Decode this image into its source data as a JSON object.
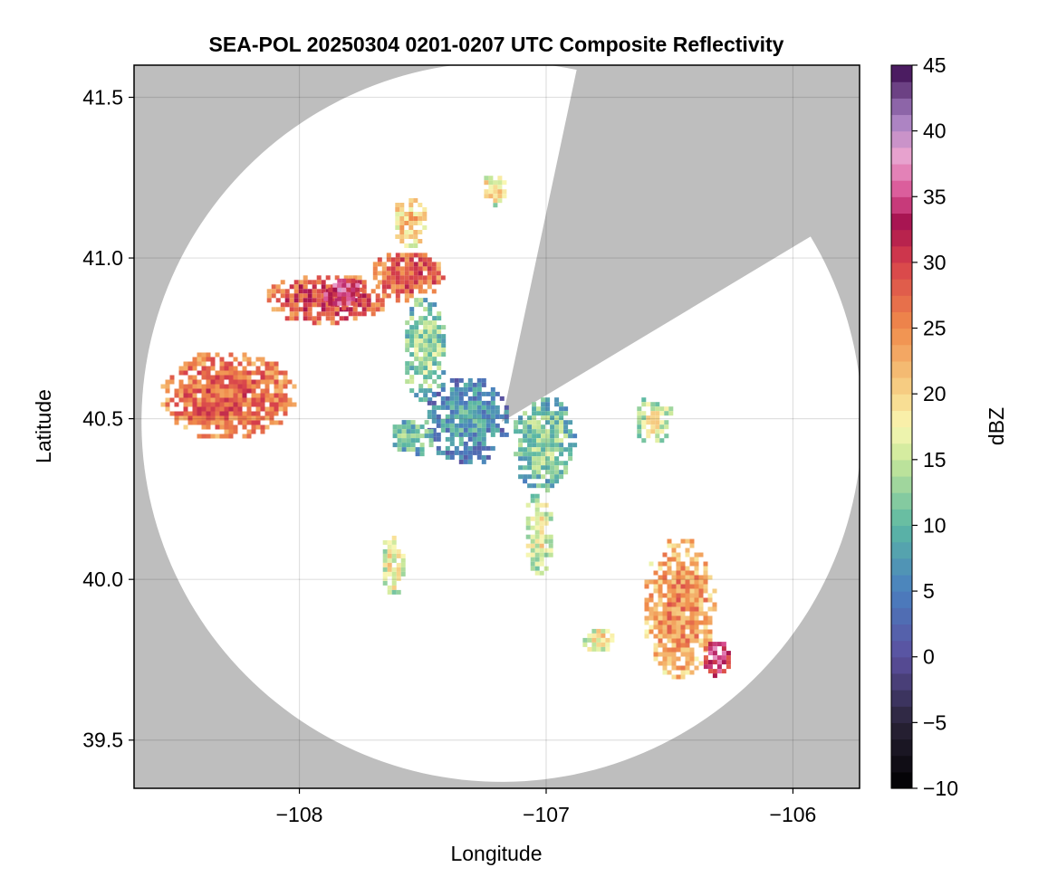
{
  "chart_data": {
    "type": "heatmap",
    "title": "SEA-POL 20250304 0201-0207 UTC Composite Reflectivity",
    "xlabel": "Longitude",
    "ylabel": "Latitude",
    "xlim": [
      -108.67,
      -105.73
    ],
    "ylim": [
      39.35,
      41.6
    ],
    "xticks": [
      -108,
      -107,
      -106
    ],
    "xtick_labels": [
      "−108",
      "−107",
      "−106"
    ],
    "yticks": [
      39.5,
      40.0,
      40.5,
      41.0,
      41.5
    ],
    "ytick_labels": [
      "39.5",
      "40.0",
      "40.5",
      "41.0",
      "41.5"
    ],
    "grid": true,
    "background_color": "#bebebe",
    "coverage_color": "#ffffff",
    "radar": {
      "center": [
        -107.18,
        40.49
      ],
      "range_deg_lat": 1.12,
      "blocked_sector_bearings_deg": [
        12,
        59
      ]
    },
    "colorbar": {
      "label": "dBZ",
      "min": -10,
      "max": 45,
      "step": 1.25,
      "ticks": [
        -10,
        -5,
        0,
        5,
        10,
        15,
        20,
        25,
        30,
        35,
        40,
        45
      ],
      "tick_labels": [
        "−10",
        "−5",
        "0",
        "5",
        "10",
        "15",
        "20",
        "25",
        "30",
        "35",
        "40",
        "45"
      ],
      "colormap": "Spectral (reversed) with purple top",
      "color_stops": [
        {
          "value": -10,
          "color": "#000000"
        },
        {
          "value": -5,
          "color": "#2a2338"
        },
        {
          "value": 0,
          "color": "#5b4f9f"
        },
        {
          "value": 5,
          "color": "#4a7fbf"
        },
        {
          "value": 10,
          "color": "#5bb8a3"
        },
        {
          "value": 15,
          "color": "#c9e89a"
        },
        {
          "value": 17.5,
          "color": "#f9f7b3"
        },
        {
          "value": 20,
          "color": "#f7d58a"
        },
        {
          "value": 25,
          "color": "#f08c4b"
        },
        {
          "value": 30,
          "color": "#d7404b"
        },
        {
          "value": 33,
          "color": "#a5114e"
        },
        {
          "value": 35,
          "color": "#d74c8e"
        },
        {
          "value": 38,
          "color": "#eaa3cf"
        },
        {
          "value": 41,
          "color": "#a47fc1"
        },
        {
          "value": 45,
          "color": "#3b0a4f"
        }
      ]
    },
    "echo_regions": [
      {
        "name": "west-cluster",
        "lon": -108.3,
        "lat": 40.58,
        "rx": 0.28,
        "ry": 0.14,
        "dbz": 24
      },
      {
        "name": "north-band",
        "lon": -107.9,
        "lat": 40.88,
        "rx": 0.25,
        "ry": 0.08,
        "dbz": 26
      },
      {
        "name": "north-band-core",
        "lon": -107.83,
        "lat": 40.9,
        "rx": 0.09,
        "ry": 0.05,
        "dbz": 31
      },
      {
        "name": "north-band-east",
        "lon": -107.57,
        "lat": 40.95,
        "rx": 0.15,
        "ry": 0.08,
        "dbz": 25
      },
      {
        "name": "north-small",
        "lon": -107.56,
        "lat": 41.12,
        "rx": 0.07,
        "ry": 0.08,
        "dbz": 18
      },
      {
        "name": "far-north",
        "lon": -107.22,
        "lat": 41.22,
        "rx": 0.05,
        "ry": 0.05,
        "dbz": 16
      },
      {
        "name": "central-green",
        "lon": -107.5,
        "lat": 40.72,
        "rx": 0.09,
        "ry": 0.17,
        "dbz": 10
      },
      {
        "name": "central-core",
        "lon": -107.33,
        "lat": 40.5,
        "rx": 0.17,
        "ry": 0.14,
        "dbz": 4
      },
      {
        "name": "east-core",
        "lon": -107.02,
        "lat": 40.43,
        "rx": 0.13,
        "ry": 0.15,
        "dbz": 9
      },
      {
        "name": "south-tail",
        "lon": -107.04,
        "lat": 40.15,
        "rx": 0.06,
        "ry": 0.13,
        "dbz": 14
      },
      {
        "name": "east-cell",
        "lon": -106.57,
        "lat": 40.5,
        "rx": 0.08,
        "ry": 0.08,
        "dbz": 13
      },
      {
        "name": "southeast-band",
        "lon": -106.47,
        "lat": 39.92,
        "rx": 0.15,
        "ry": 0.22,
        "dbz": 21
      },
      {
        "name": "southeast-core",
        "lon": -106.32,
        "lat": 39.76,
        "rx": 0.06,
        "ry": 0.06,
        "dbz": 30
      },
      {
        "name": "southeast-small",
        "lon": -106.8,
        "lat": 39.82,
        "rx": 0.07,
        "ry": 0.04,
        "dbz": 15
      },
      {
        "name": "southwest-small",
        "lon": -107.63,
        "lat": 40.05,
        "rx": 0.05,
        "ry": 0.1,
        "dbz": 14
      },
      {
        "name": "west-of-core",
        "lon": -107.55,
        "lat": 40.45,
        "rx": 0.09,
        "ry": 0.06,
        "dbz": 8
      }
    ]
  }
}
